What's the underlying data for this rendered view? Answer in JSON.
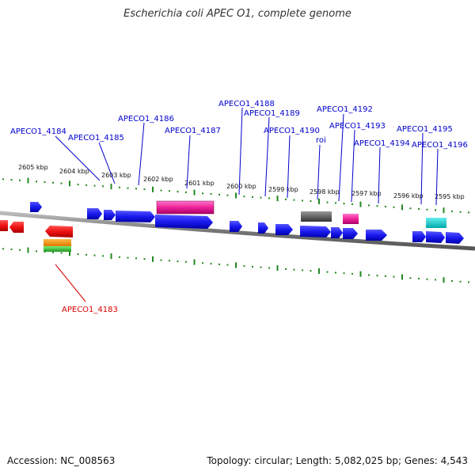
{
  "title": "Escherichia coli APEC O1, complete genome",
  "footer": {
    "accession": "Accession: NC_008563",
    "summary": "Topology: circular; Length: 5,082,025 bp; Genes: 4,543"
  },
  "scale_labels": [
    "2605 kbp",
    "2604 kbp",
    "2603 kbp",
    "2602 kbp",
    "2601 kbp",
    "2600 kbp",
    "2599 kbp",
    "2598 kbp",
    "2597 kbp",
    "2596 kbp",
    "2595 kbp"
  ],
  "gene_labels": [
    {
      "text": "APECO1_4184",
      "color": "#0000cc"
    },
    {
      "text": "APECO1_4185",
      "color": "#0000cc"
    },
    {
      "text": "APECO1_4186",
      "color": "#0000cc"
    },
    {
      "text": "APECO1_4187",
      "color": "#0000cc"
    },
    {
      "text": "APECO1_4188",
      "color": "#0000cc"
    },
    {
      "text": "APECO1_4189",
      "color": "#0000cc"
    },
    {
      "text": "APECO1_4190",
      "color": "#0000cc"
    },
    {
      "text": "roi",
      "color": "#0000cc"
    },
    {
      "text": "APECO1_4192",
      "color": "#0000cc"
    },
    {
      "text": "APECO1_4193",
      "color": "#0000cc"
    },
    {
      "text": "APECO1_4194",
      "color": "#0000cc"
    },
    {
      "text": "APECO1_4195",
      "color": "#0000cc"
    },
    {
      "text": "APECO1_4196",
      "color": "#0000cc"
    },
    {
      "text": "APECO1_4183",
      "color": "#dd0000"
    }
  ],
  "colors": {
    "cds_forward": "#1a1aee",
    "cds_reverse": "#ee1111",
    "rna_pink": "#ee2299",
    "pseudo_gray": "#666666",
    "orange": "#ee8800",
    "green": "#33bb33",
    "cyan": "#11cccc",
    "tick": "#228822",
    "backbone": "#777777"
  }
}
